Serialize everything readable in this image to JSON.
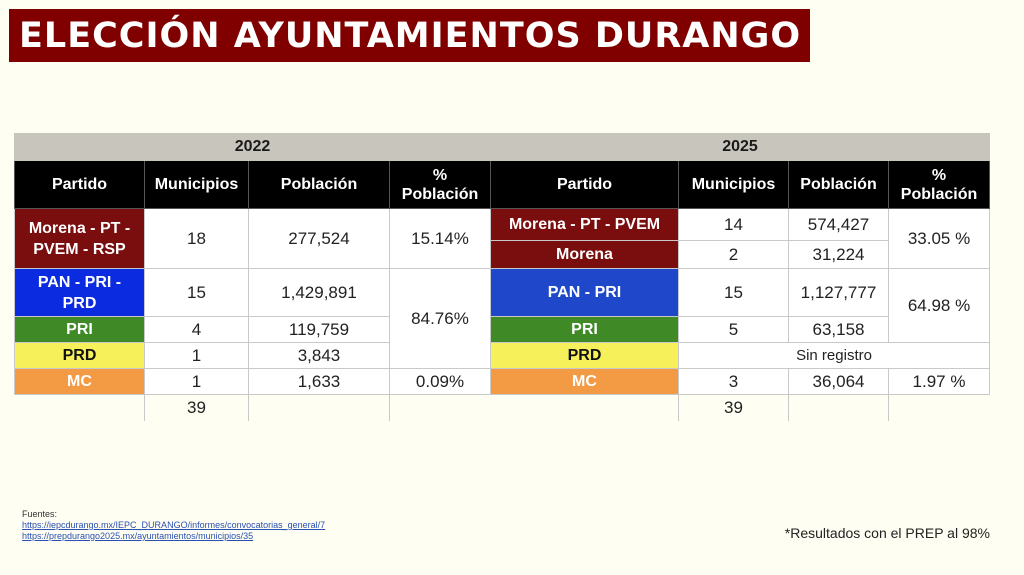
{
  "title": "ELECCIÓN AYUNTAMIENTOS DURANGO",
  "headers": {
    "partido": "Partido",
    "municipios": "Municipios",
    "poblacion": "Población",
    "pct_line1": "%",
    "pct_line2": "Población"
  },
  "t2022": {
    "year": "2022",
    "rows": [
      {
        "party": "Morena - PT - PVEM - RSP",
        "municipios": "18",
        "poblacion": "277,524",
        "pct": "15.14%"
      },
      {
        "party": "PAN - PRI - PRD",
        "municipios": "15",
        "poblacion": "1,429,891"
      },
      {
        "party": "PRI",
        "municipios": "4",
        "poblacion": "119,759"
      },
      {
        "party": "PRD",
        "municipios": "1",
        "poblacion": "3,843"
      },
      {
        "party": "MC",
        "municipios": "1",
        "poblacion": "1,633",
        "pct": "0.09%"
      }
    ],
    "pct_group": "84.76%",
    "total": "39"
  },
  "t2025": {
    "year": "2025",
    "rows": [
      {
        "party": "Morena - PT - PVEM",
        "municipios": "14",
        "poblacion": "574,427"
      },
      {
        "party": "Morena",
        "municipios": "2",
        "poblacion": "31,224"
      },
      {
        "party": "PAN - PRI",
        "municipios": "15",
        "poblacion": "1,127,777"
      },
      {
        "party": "PRI",
        "municipios": "5",
        "poblacion": "63,158"
      },
      {
        "party": "PRD",
        "sin_registro": "Sin registro"
      },
      {
        "party": "MC",
        "municipios": "3",
        "poblacion": "36,064",
        "pct": "1.97 %"
      }
    ],
    "pct_morena": "33.05 %",
    "pct_pan": "64.98 %",
    "total": "39"
  },
  "sources": {
    "label": "Fuentes:",
    "link1": "https://iepcdurango.mx/IEPC_DURANGO/informes/convocatorias_general/7",
    "link2": "https://prepdurango2025.mx/ayuntamientos/municipios/35"
  },
  "note": "*Resultados con el PREP al 98%",
  "colors": {
    "title_bg": "#800000",
    "morena": "#7a0d0d",
    "pan": "#0b2be0",
    "pri": "#3f8a26",
    "prd": "#f6f15a",
    "mc": "#f39a44"
  }
}
